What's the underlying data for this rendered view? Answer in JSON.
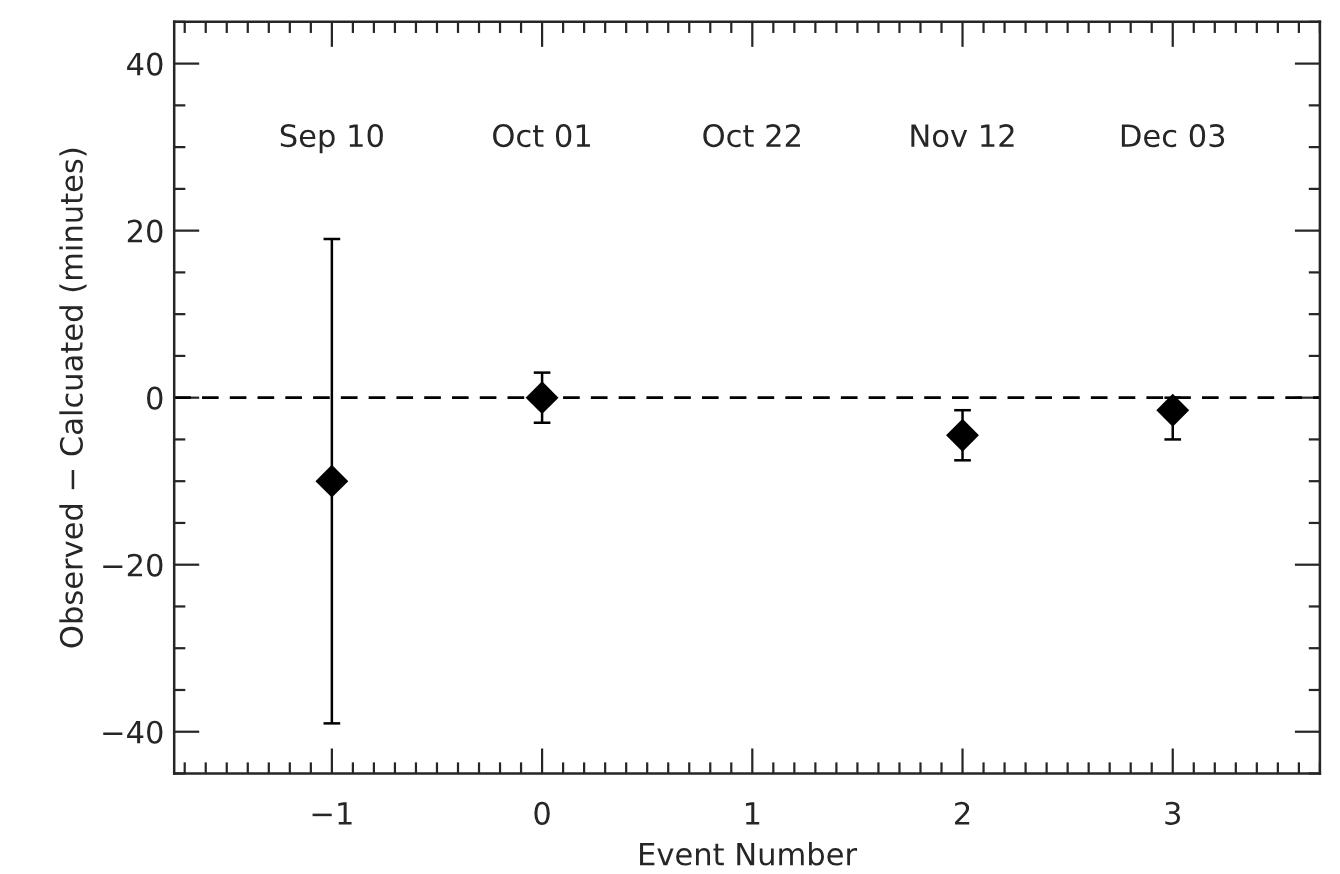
{
  "chart_data": {
    "type": "scatter",
    "xlabel": "Event Number",
    "ylabel": "Observed − Calcuated (minutes)",
    "x": [
      -1,
      0,
      2,
      3
    ],
    "values": [
      -10,
      0,
      -4.5,
      -1.5
    ],
    "errors": [
      [
        -39,
        19
      ],
      3,
      [
        -7.5,
        -1.5
      ],
      [
        -5,
        0
      ]
    ],
    "color": "#000000",
    "marker": "diamond",
    "xlim": [
      -1.75,
      3.7
    ],
    "xticks": [
      {
        "value": -1,
        "label": "−1"
      },
      0,
      1,
      2,
      3
    ],
    "ylim": [
      -45,
      45
    ],
    "yticks": [
      {
        "value": -40,
        "label": "−40"
      },
      {
        "value": -20,
        "label": "−20"
      },
      0,
      20,
      40
    ],
    "ref_lines": [
      {
        "axis": "y",
        "value": 0,
        "label": null,
        "line_style": "dashed",
        "color": "#000000"
      }
    ],
    "annotations": [
      "Sep 10",
      "Oct 01",
      "Oct 22",
      "Nov 12",
      "Dec 03"
    ],
    "grid": false,
    "legend": false
  }
}
